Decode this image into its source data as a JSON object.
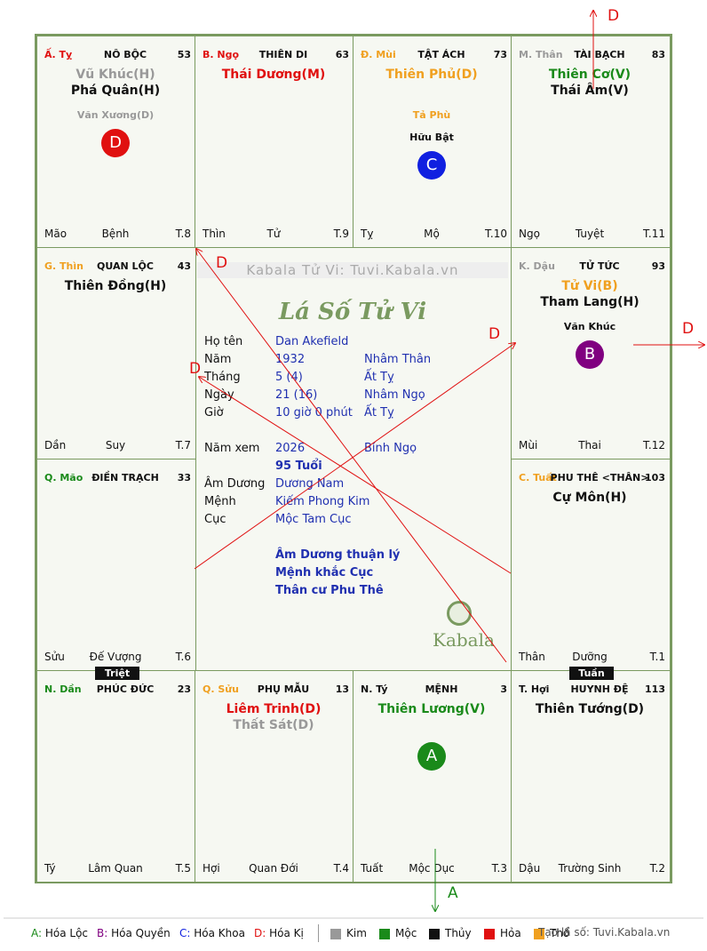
{
  "palaces": [
    {
      "canchi": "Ấ. Tỵ",
      "canchi_color": "#e01010",
      "name": "NÔ BỘC",
      "number": "53",
      "stars": [
        {
          "text": "Vũ Khúc(H)",
          "color": "#999"
        },
        {
          "text": "Phá Quân(H)",
          "color": "#111"
        }
      ],
      "minor": [
        {
          "text": "Văn Xương(D)",
          "color": "#999"
        }
      ],
      "marker": {
        "letter": "D",
        "color": "#e01010"
      },
      "footer": [
        "Mão",
        "Bệnh",
        "T.8"
      ]
    },
    {
      "canchi": "B. Ngọ",
      "canchi_color": "#e01010",
      "name": "THIÊN DI",
      "number": "63",
      "stars": [
        {
          "text": "Thái Dương(M)",
          "color": "#e01010"
        }
      ],
      "minor": [],
      "footer": [
        "Thìn",
        "Tử",
        "T.9"
      ]
    },
    {
      "canchi": "Đ. Mùi",
      "canchi_color": "#f0a020",
      "name": "TẬT ÁCH",
      "number": "73",
      "stars": [
        {
          "text": "Thiên Phủ(D)",
          "color": "#f0a020"
        }
      ],
      "minor": [
        {
          "text": "Tả Phù",
          "color": "#f0a020"
        },
        {
          "text": "Hữu Bật",
          "color": "#111"
        }
      ],
      "marker": {
        "letter": "C",
        "color": "#1020e0"
      },
      "footer": [
        "Tỵ",
        "Mộ",
        "T.10"
      ]
    },
    {
      "canchi": "M. Thân",
      "canchi_color": "#999",
      "name": "TÀI BẠCH",
      "number": "83",
      "stars": [
        {
          "text": "Thiên Cơ(V)",
          "color": "#1a8a1a"
        },
        {
          "text": "Thái Âm(V)",
          "color": "#111"
        }
      ],
      "minor": [],
      "footer": [
        "Ngọ",
        "Tuyệt",
        "T.11"
      ]
    },
    {
      "canchi": "G. Thìn",
      "canchi_color": "#f0a020",
      "name": "QUAN LỘC",
      "number": "43",
      "stars": [
        {
          "text": "Thiên Đồng(H)",
          "color": "#111"
        }
      ],
      "minor": [],
      "footer": [
        "Dần",
        "Suy",
        "T.7"
      ]
    },
    {
      "canchi": "K. Dậu",
      "canchi_color": "#999",
      "name": "TỬ TỨC",
      "number": "93",
      "stars": [
        {
          "text": "Tử Vi(B)",
          "color": "#f0a020"
        },
        {
          "text": "Tham Lang(H)",
          "color": "#111"
        }
      ],
      "minor": [
        {
          "text": "Văn Khúc",
          "color": "#111"
        }
      ],
      "marker": {
        "letter": "B",
        "color": "#800080"
      },
      "footer": [
        "Mùi",
        "Thai",
        "T.12"
      ]
    },
    {
      "canchi": "Q. Mão",
      "canchi_color": "#1a8a1a",
      "name": "ĐIỀN TRẠCH",
      "number": "33",
      "stars": [],
      "minor": [],
      "footer": [
        "Sửu",
        "Đế Vượng",
        "T.6"
      ]
    },
    {
      "canchi": "C. Tuất",
      "canchi_color": "#f0a020",
      "name": "PHU THÊ <THÂN>",
      "number": "103",
      "stars": [
        {
          "text": "Cự Môn(H)",
          "color": "#111"
        }
      ],
      "minor": [],
      "footer": [
        "Thân",
        "Dưỡng",
        "T.1"
      ]
    },
    {
      "canchi": "N. Dần",
      "canchi_color": "#1a8a1a",
      "name": "PHÚC ĐỨC",
      "number": "23",
      "stars": [],
      "minor": [],
      "footer": [
        "Tý",
        "Lâm Quan",
        "T.5"
      ]
    },
    {
      "canchi": "Q. Sửu",
      "canchi_color": "#f0a020",
      "name": "PHỤ MẪU",
      "number": "13",
      "stars": [
        {
          "text": "Liêm Trinh(D)",
          "color": "#e01010"
        },
        {
          "text": "Thất Sát(D)",
          "color": "#999"
        }
      ],
      "minor": [],
      "footer": [
        "Hợi",
        "Quan Đới",
        "T.4"
      ]
    },
    {
      "canchi": "N. Tý",
      "canchi_color": "#111",
      "name": "MỆNH",
      "number": "3",
      "stars": [
        {
          "text": "Thiên Lương(V)",
          "color": "#1a8a1a"
        }
      ],
      "minor": [],
      "marker": {
        "letter": "A",
        "color": "#1a8a1a"
      },
      "footer": [
        "Tuất",
        "Mộc Dục",
        "T.3"
      ]
    },
    {
      "canchi": "T. Hợi",
      "canchi_color": "#111",
      "name": "HUYNH ĐỆ",
      "number": "113",
      "stars": [
        {
          "text": "Thiên Tướng(D)",
          "color": "#111"
        }
      ],
      "minor": [],
      "footer": [
        "Dậu",
        "Trường Sinh",
        "T.2"
      ]
    }
  ],
  "badges": [
    "Triệt",
    "Tuần"
  ],
  "center": {
    "watermark": "Kabala Tử Vi: Tuvi.Kabala.vn",
    "title": "Lá Số Tử Vi",
    "birth": [
      {
        "label": "Họ tên",
        "value": "Dan Akefield"
      },
      {
        "label": "Năm",
        "value": "1932",
        "extra": "Nhâm Thân"
      },
      {
        "label": "Tháng",
        "value": "5  (4)",
        "extra": "Ất Tỵ"
      },
      {
        "label": "Ngày",
        "value": "21  (16)",
        "extra": "Nhâm Ngọ"
      },
      {
        "label": "Giờ",
        "value": "10 giờ 0 phút",
        "extra": "Ất Tỵ"
      }
    ],
    "view": {
      "label": "Năm xem",
      "value": "2026",
      "extra": "Bính Ngọ"
    },
    "age": "95 Tuổi",
    "chart": [
      {
        "label": "Âm Dương",
        "value": "Dương Nam"
      },
      {
        "label": "Mệnh",
        "value": "Kiếm Phong Kim"
      },
      {
        "label": "Cục",
        "value": "Mộc Tam Cục"
      }
    ],
    "notes": [
      "Âm Dương thuận lý",
      "Mệnh khắc Cục",
      "Thân cư Phu Thê"
    ],
    "logo": "Kabala"
  },
  "arrows": [
    "D",
    "D",
    "D",
    "D",
    "D",
    "A"
  ],
  "legend": {
    "hoa": [
      {
        "letter": "A:",
        "label": "Hóa Lộc",
        "color": "#1a8a1a"
      },
      {
        "letter": "B:",
        "label": "Hóa Quyền",
        "color": "#800080"
      },
      {
        "letter": "C:",
        "label": "Hóa Khoa",
        "color": "#1020e0"
      },
      {
        "letter": "D:",
        "label": "Hóa Kị",
        "color": "#e01010"
      }
    ],
    "elements": [
      {
        "label": "Kim",
        "color": "#999"
      },
      {
        "label": "Mộc",
        "color": "#1a8a1a"
      },
      {
        "label": "Thủy",
        "color": "#111"
      },
      {
        "label": "Hỏa",
        "color": "#e01010"
      },
      {
        "label": "Thổ",
        "color": "#f0a020"
      }
    ],
    "site": "Tạo lá số: Tuvi.Kabala.vn"
  }
}
